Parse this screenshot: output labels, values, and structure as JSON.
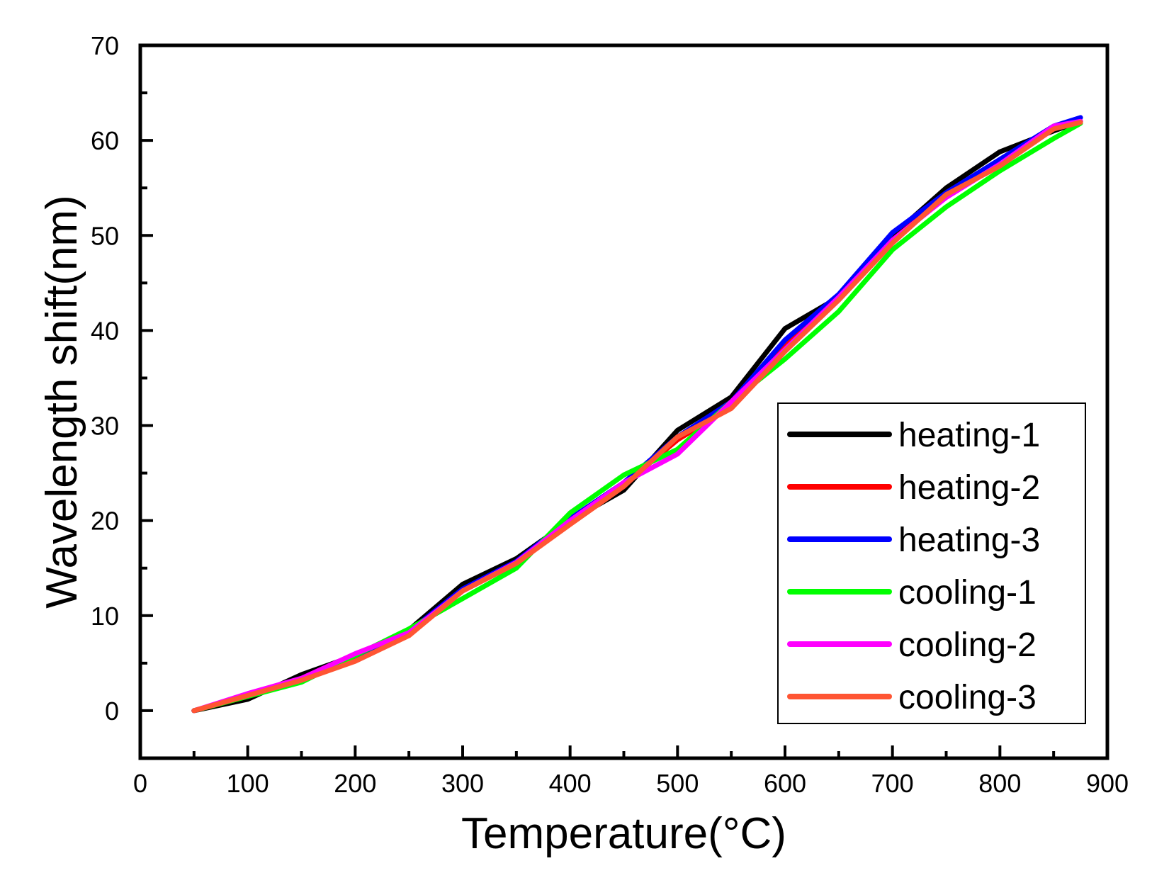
{
  "chart_data": {
    "type": "line",
    "title": "",
    "xlabel": "Temperature(°C)",
    "ylabel": "Wavelength shift(nm)",
    "xlim": [
      0,
      900
    ],
    "ylim": [
      -5,
      70
    ],
    "xticks": [
      0,
      100,
      200,
      300,
      400,
      500,
      600,
      700,
      800,
      900
    ],
    "yticks": [
      0,
      10,
      20,
      30,
      40,
      50,
      60,
      70
    ],
    "grid": false,
    "legend_position": "bottom-right",
    "series": [
      {
        "name": "heating-1",
        "color": "#000000",
        "x": [
          50,
          100,
          150,
          200,
          250,
          300,
          350,
          400,
          450,
          500,
          550,
          600,
          650,
          700,
          750,
          800,
          850,
          875
        ],
        "y": [
          0,
          1.2,
          3.8,
          5.8,
          8.5,
          13.3,
          16.0,
          20.0,
          23.2,
          29.5,
          33.0,
          40.2,
          43.5,
          50.0,
          55.0,
          58.8,
          61.0,
          62.0
        ]
      },
      {
        "name": "heating-2",
        "color": "#ff0000",
        "x": [
          50,
          100,
          150,
          200,
          250,
          300,
          350,
          400,
          450,
          500,
          550,
          600,
          650,
          700,
          750,
          800,
          850,
          875
        ],
        "y": [
          0,
          1.5,
          3.3,
          5.5,
          8.2,
          12.6,
          15.5,
          19.8,
          23.8,
          28.5,
          32.0,
          38.5,
          43.3,
          49.5,
          54.2,
          57.8,
          61.3,
          62.0
        ]
      },
      {
        "name": "heating-3",
        "color": "#0000ff",
        "x": [
          50,
          100,
          150,
          200,
          250,
          300,
          350,
          400,
          450,
          500,
          550,
          600,
          650,
          700,
          750,
          800,
          850,
          875
        ],
        "y": [
          0,
          1.6,
          3.4,
          5.6,
          8.3,
          12.8,
          15.7,
          20.2,
          24.0,
          28.8,
          32.5,
          39.0,
          43.8,
          50.3,
          54.5,
          58.0,
          61.5,
          62.4
        ]
      },
      {
        "name": "cooling-1",
        "color": "#00ff00",
        "x": [
          50,
          100,
          150,
          200,
          250,
          300,
          350,
          400,
          450,
          500,
          550,
          600,
          650,
          700,
          750,
          800,
          850,
          875
        ],
        "y": [
          0,
          1.5,
          3.0,
          5.8,
          8.6,
          11.8,
          15.0,
          20.8,
          24.8,
          27.5,
          32.5,
          37.0,
          42.0,
          48.5,
          53.0,
          56.8,
          60.2,
          61.8
        ]
      },
      {
        "name": "cooling-2",
        "color": "#ff00ff",
        "x": [
          50,
          100,
          150,
          200,
          250,
          300,
          350,
          400,
          450,
          500,
          550,
          600,
          650,
          700,
          750,
          800,
          850,
          875
        ],
        "y": [
          0,
          1.8,
          3.4,
          6.0,
          8.2,
          12.6,
          15.6,
          20.0,
          24.0,
          27.0,
          32.5,
          38.0,
          43.5,
          49.5,
          54.0,
          57.5,
          61.5,
          62.0
        ]
      },
      {
        "name": "cooling-3",
        "color": "#ff5533",
        "x": [
          50,
          100,
          150,
          200,
          250,
          300,
          350,
          400,
          450,
          500,
          550,
          600,
          650,
          700,
          750,
          800,
          850,
          875
        ],
        "y": [
          0,
          1.6,
          3.2,
          5.2,
          7.9,
          12.6,
          15.5,
          19.6,
          23.6,
          28.8,
          31.8,
          37.8,
          43.2,
          49.2,
          54.3,
          57.3,
          61.2,
          61.9
        ]
      }
    ]
  }
}
